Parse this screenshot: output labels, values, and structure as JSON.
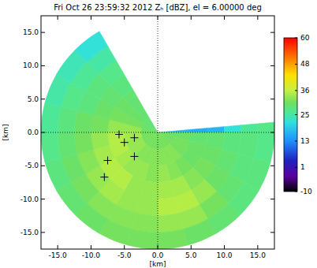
{
  "chart_data": {
    "type": "polar_heatmap",
    "title": "Fri Oct 26 23:59:32 2012 Zₕ [dBZ], el = 6.00000 deg",
    "xlabel": "[km]",
    "ylabel": "[km]",
    "xlim": [
      -17.5,
      17.5
    ],
    "ylim": [
      -17.5,
      17.5
    ],
    "xticks": [
      {
        "value": -15,
        "label": "-15.0"
      },
      {
        "value": -10,
        "label": "-10.0"
      },
      {
        "value": -5,
        "label": "-5.0"
      },
      {
        "value": 0,
        "label": "0.0"
      },
      {
        "value": 5,
        "label": "5.0"
      },
      {
        "value": 10,
        "label": "10.0"
      },
      {
        "value": 15,
        "label": "15.0"
      }
    ],
    "yticks": [
      {
        "value": -15,
        "label": "-15.0"
      },
      {
        "value": -10,
        "label": "-10.0"
      },
      {
        "value": -5,
        "label": "-5.0"
      },
      {
        "value": 0,
        "label": "0.0"
      },
      {
        "value": 5,
        "label": "5.0"
      },
      {
        "value": 10,
        "label": "10.0"
      },
      {
        "value": 15,
        "label": "15.0"
      }
    ],
    "azimuth_edges": [
      85,
      90,
      105,
      120,
      135,
      150,
      165,
      180,
      195,
      210,
      225,
      240,
      255,
      270,
      285,
      300,
      315,
      330
    ],
    "range_edges": [
      0,
      2.5,
      5,
      7.5,
      10,
      12.5,
      15,
      17.5
    ],
    "cells": [
      [
        18,
        17,
        16,
        17,
        22,
        26,
        27
      ],
      [
        30,
        30,
        29,
        29,
        28,
        28,
        27
      ],
      [
        30,
        31,
        30,
        30,
        29,
        28,
        28
      ],
      [
        31,
        31,
        30,
        31,
        30,
        29,
        28
      ],
      [
        31,
        32,
        31,
        32,
        33,
        31,
        29
      ],
      [
        31,
        32,
        32,
        34,
        35,
        33,
        30
      ],
      [
        31,
        32,
        33,
        34,
        35,
        33,
        31
      ],
      [
        31,
        32,
        32,
        33,
        33,
        32,
        31
      ],
      [
        31,
        32,
        33,
        33,
        33,
        32,
        31
      ],
      [
        31,
        32,
        33,
        35,
        34,
        32,
        30
      ],
      [
        31,
        33,
        34,
        35,
        33,
        31,
        29
      ],
      [
        31,
        33,
        35,
        34,
        32,
        30,
        28
      ],
      [
        31,
        34,
        35,
        33,
        31,
        29,
        27
      ],
      [
        30,
        33,
        33,
        31,
        30,
        28,
        26
      ],
      [
        30,
        31,
        31,
        30,
        28,
        27,
        25
      ],
      [
        29,
        30,
        30,
        29,
        28,
        26,
        24
      ],
      [
        29,
        29,
        29,
        28,
        27,
        25,
        22
      ]
    ],
    "colorbar": {
      "range": [
        -10,
        60
      ],
      "ticks": [
        -10,
        1,
        13,
        25,
        36,
        48,
        60
      ]
    },
    "series": [
      {
        "type": "scatter",
        "marker": "plus",
        "color": "#000000",
        "x": [
          -5.8,
          -3.5,
          -5.0,
          -7.5,
          -3.5,
          -8.0
        ],
        "values": [
          -0.3,
          -0.8,
          -1.5,
          -4.2,
          -3.6,
          -6.7
        ]
      }
    ]
  }
}
